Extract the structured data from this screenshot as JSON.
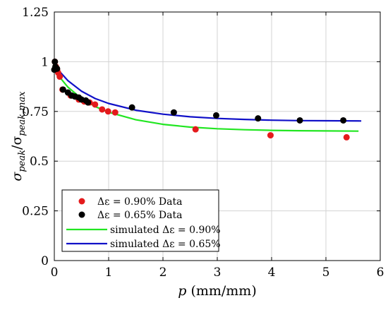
{
  "chart_data": {
    "type": "scatter",
    "xlabel": "p (mm/mm)",
    "ylabel": "σ_peak/σ_peak,max",
    "xlim": [
      0,
      6
    ],
    "ylim": [
      0,
      1.25
    ],
    "grid": true,
    "legend_placement": "bottom-left",
    "x_ticks": [
      "0",
      "1",
      "2",
      "3",
      "4",
      "5",
      "6"
    ],
    "y_ticks": [
      "0",
      "0.25",
      "0.5",
      "0.75",
      "1",
      "1.25"
    ],
    "series": [
      {
        "name": "Δε = 0.90% Data",
        "kind": "points",
        "color": "#e41a1c",
        "points": [
          [
            0.01,
            1.0
          ],
          [
            0.03,
            0.975
          ],
          [
            0.05,
            0.96
          ],
          [
            0.07,
            0.945
          ],
          [
            0.1,
            0.925
          ],
          [
            0.15,
            0.86
          ],
          [
            0.3,
            0.83
          ],
          [
            0.45,
            0.81
          ],
          [
            0.55,
            0.8
          ],
          [
            0.65,
            0.795
          ],
          [
            0.75,
            0.785
          ],
          [
            0.88,
            0.76
          ],
          [
            0.99,
            0.75
          ],
          [
            1.12,
            0.745
          ],
          [
            2.6,
            0.66
          ],
          [
            3.98,
            0.63
          ],
          [
            5.38,
            0.62
          ]
        ]
      },
      {
        "name": "Δε = 0.65% Data",
        "kind": "points",
        "color": "#000000",
        "points": [
          [
            0.0,
            0.96
          ],
          [
            0.01,
            1.0
          ],
          [
            0.02,
            0.975
          ],
          [
            0.05,
            0.965
          ],
          [
            0.16,
            0.86
          ],
          [
            0.25,
            0.845
          ],
          [
            0.32,
            0.83
          ],
          [
            0.38,
            0.825
          ],
          [
            0.45,
            0.82
          ],
          [
            0.5,
            0.81
          ],
          [
            0.58,
            0.805
          ],
          [
            0.62,
            0.795
          ],
          [
            1.43,
            0.77
          ],
          [
            2.2,
            0.745
          ],
          [
            2.98,
            0.73
          ],
          [
            3.75,
            0.715
          ],
          [
            4.52,
            0.705
          ],
          [
            5.32,
            0.705
          ]
        ]
      },
      {
        "name": "simulated Δε = 0.90%",
        "kind": "line",
        "color": "#22e622",
        "points": [
          [
            0,
            0.955
          ],
          [
            0.25,
            0.872
          ],
          [
            0.5,
            0.815
          ],
          [
            0.75,
            0.775
          ],
          [
            1.0,
            0.746
          ],
          [
            1.5,
            0.708
          ],
          [
            2.0,
            0.685
          ],
          [
            2.5,
            0.671
          ],
          [
            3.0,
            0.663
          ],
          [
            3.5,
            0.658
          ],
          [
            4.0,
            0.655
          ],
          [
            4.5,
            0.653
          ],
          [
            5.0,
            0.652
          ],
          [
            5.6,
            0.651
          ]
        ]
      },
      {
        "name": "simulated Δε = 0.65%",
        "kind": "line",
        "color": "#1010c8",
        "points": [
          [
            0,
            0.98
          ],
          [
            0.25,
            0.905
          ],
          [
            0.5,
            0.852
          ],
          [
            0.75,
            0.815
          ],
          [
            1.0,
            0.79
          ],
          [
            1.5,
            0.756
          ],
          [
            2.0,
            0.736
          ],
          [
            2.5,
            0.723
          ],
          [
            3.0,
            0.715
          ],
          [
            3.5,
            0.71
          ],
          [
            4.0,
            0.706
          ],
          [
            4.5,
            0.704
          ],
          [
            5.0,
            0.703
          ],
          [
            5.65,
            0.702
          ]
        ]
      }
    ]
  }
}
